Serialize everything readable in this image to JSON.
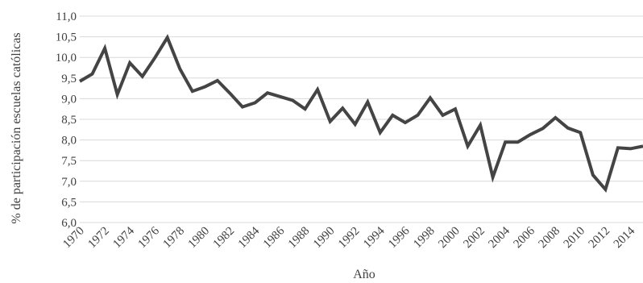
{
  "chart_data": {
    "type": "line",
    "xlabel": "Año",
    "ylabel": "% de participación escuelas católicas",
    "ylim": [
      6.0,
      11.0
    ],
    "y_ticks": [
      6.0,
      6.5,
      7.0,
      7.5,
      8.0,
      8.5,
      9.0,
      9.5,
      10.0,
      10.5,
      11.0
    ],
    "y_tick_labels": [
      "6,0",
      "6,5",
      "7,0",
      "7,5",
      "8,0",
      "8,5",
      "9,0",
      "9,5",
      "10,0",
      "10,5",
      "11,0"
    ],
    "x_range": [
      1970,
      2015
    ],
    "x_tick_labels": [
      "1970",
      "1972",
      "1974",
      "1976",
      "1978",
      "1980",
      "1982",
      "1984",
      "1986",
      "1988",
      "1990",
      "1992",
      "1994",
      "1996",
      "1998",
      "2000",
      "2002",
      "2004",
      "2006",
      "2008",
      "2010",
      "2012",
      "2014"
    ],
    "grid": "horizontal",
    "legend": "none",
    "line_color": "#444444",
    "series": [
      {
        "x": [
          1970,
          1971,
          1972,
          1973,
          1974,
          1975,
          1976,
          1977,
          1978,
          1979,
          1980,
          1981,
          1982,
          1983,
          1984,
          1985,
          1986,
          1987,
          1988,
          1989,
          1990,
          1991,
          1992,
          1993,
          1994,
          1995,
          1996,
          1997,
          1998,
          1999,
          2000,
          2001,
          2002,
          2003,
          2004,
          2005,
          2006,
          2007,
          2008,
          2009,
          2010,
          2011,
          2012,
          2013,
          2014,
          2015
        ],
        "values": [
          9.42,
          9.6,
          10.22,
          9.1,
          9.87,
          9.54,
          9.99,
          10.48,
          9.72,
          9.18,
          9.29,
          9.44,
          9.13,
          8.8,
          8.9,
          9.14,
          9.05,
          8.96,
          8.75,
          9.22,
          8.45,
          8.77,
          8.38,
          8.92,
          8.18,
          8.6,
          8.42,
          8.6,
          9.02,
          8.6,
          8.75,
          7.85,
          8.36,
          7.1,
          7.95,
          7.95,
          8.13,
          8.28,
          8.54,
          8.29,
          8.18,
          7.15,
          6.8,
          7.81,
          7.79,
          7.85
        ]
      }
    ]
  }
}
